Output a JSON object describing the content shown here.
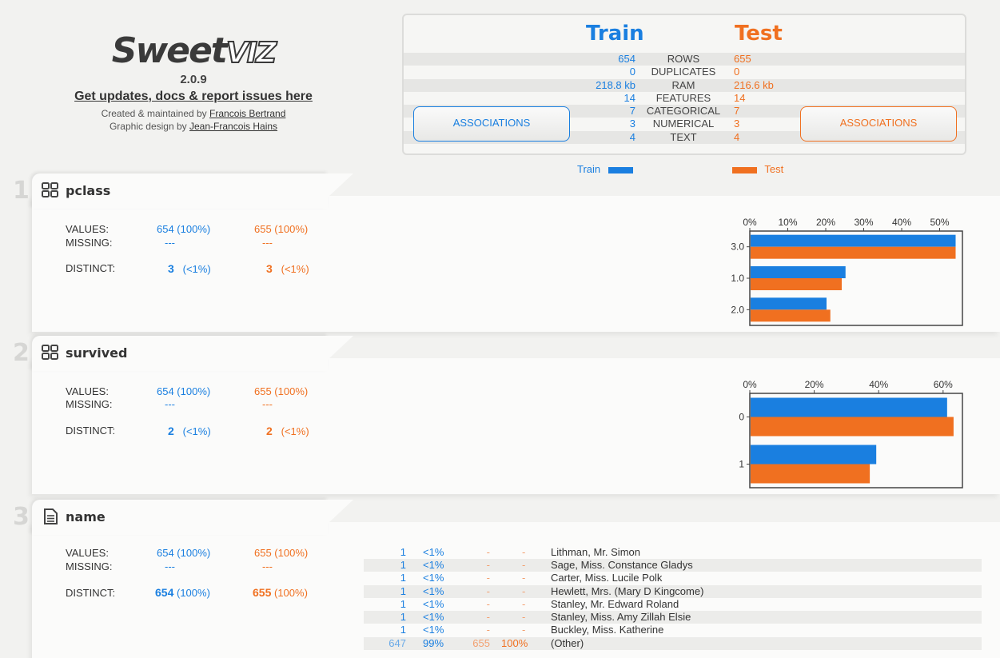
{
  "header": {
    "logo_main": "Sweet",
    "logo_accent": "VIZ",
    "version": "2.0.9",
    "updates_link": "Get updates, docs & report issues here",
    "created_prefix": "Created & maintained by ",
    "author": "Francois Bertrand",
    "design_prefix": "Graphic design by ",
    "designer": "Jean-Francois Hains"
  },
  "summary": {
    "train_title": "Train",
    "test_title": "Test",
    "rows": [
      {
        "label": "ROWS",
        "train": "654",
        "test": "655"
      },
      {
        "label": "DUPLICATES",
        "train": "0",
        "test": "0"
      },
      {
        "label": "RAM",
        "train": "218.8 kb",
        "test": "216.6 kb"
      },
      {
        "label": "FEATURES",
        "train": "14",
        "test": "14"
      },
      {
        "label": "CATEGORICAL",
        "train": "7",
        "test": "7"
      },
      {
        "label": "NUMERICAL",
        "train": "3",
        "test": "3"
      },
      {
        "label": "TEXT",
        "train": "4",
        "test": "4"
      }
    ],
    "assoc_train": "ASSOCIATIONS",
    "assoc_test": "ASSOCIATIONS",
    "legend_train": "Train",
    "legend_test": "Test",
    "colors": {
      "train": "#1a7fe0",
      "test": "#f07020"
    }
  },
  "features": [
    {
      "num": "1",
      "name": "pclass",
      "icon": "categorical-grid-icon",
      "values_label": "VALUES:",
      "missing_label": "MISSING:",
      "distinct_label": "DISTINCT:",
      "train_values": "654 (100%)",
      "test_values": "655 (100%)",
      "train_missing": "---",
      "test_missing": "---",
      "train_distinct": "3",
      "train_distinct_pct": "(<1%)",
      "test_distinct": "3",
      "test_distinct_pct": "(<1%)"
    },
    {
      "num": "2",
      "name": "survived",
      "icon": "categorical-grid-icon",
      "values_label": "VALUES:",
      "missing_label": "MISSING:",
      "distinct_label": "DISTINCT:",
      "train_values": "654 (100%)",
      "test_values": "655 (100%)",
      "train_missing": "---",
      "test_missing": "---",
      "train_distinct": "2",
      "train_distinct_pct": "(<1%)",
      "test_distinct": "2",
      "test_distinct_pct": "(<1%)"
    },
    {
      "num": "3",
      "name": "name",
      "icon": "text-document-icon",
      "values_label": "VALUES:",
      "missing_label": "MISSING:",
      "distinct_label": "DISTINCT:",
      "train_values": "654 (100%)",
      "test_values": "655 (100%)",
      "train_missing": "---",
      "test_missing": "---",
      "train_distinct": "654",
      "train_distinct_pct": "(100%)",
      "test_distinct": "655",
      "test_distinct_pct": "(100%)",
      "top_values": [
        {
          "tc": "1",
          "tp": "<1%",
          "sc": "-",
          "sp": "-",
          "label": "Lithman, Mr. Simon"
        },
        {
          "tc": "1",
          "tp": "<1%",
          "sc": "-",
          "sp": "-",
          "label": "Sage, Miss. Constance Gladys"
        },
        {
          "tc": "1",
          "tp": "<1%",
          "sc": "-",
          "sp": "-",
          "label": "Carter, Miss. Lucile Polk"
        },
        {
          "tc": "1",
          "tp": "<1%",
          "sc": "-",
          "sp": "-",
          "label": "Hewlett, Mrs. (Mary D Kingcome)"
        },
        {
          "tc": "1",
          "tp": "<1%",
          "sc": "-",
          "sp": "-",
          "label": "Stanley, Mr. Edward Roland"
        },
        {
          "tc": "1",
          "tp": "<1%",
          "sc": "-",
          "sp": "-",
          "label": "Stanley, Miss. Amy Zillah Elsie"
        },
        {
          "tc": "1",
          "tp": "<1%",
          "sc": "-",
          "sp": "-",
          "label": "Buckley, Miss. Katherine"
        },
        {
          "tc": "647",
          "tp": "99%",
          "sc": "655",
          "sp": "100%",
          "label": "(Other)"
        }
      ]
    }
  ],
  "chart_data": [
    {
      "type": "bar",
      "orientation": "horizontal",
      "categories": [
        "3.0",
        "1.0",
        "2.0"
      ],
      "xticks": [
        "0%",
        "10%",
        "20%",
        "30%",
        "40%",
        "50%"
      ],
      "xlim": [
        0,
        56
      ],
      "series": [
        {
          "name": "Train",
          "values": [
            54,
            25,
            20
          ]
        },
        {
          "name": "Test",
          "values": [
            54,
            24,
            21
          ]
        }
      ]
    },
    {
      "type": "bar",
      "orientation": "horizontal",
      "categories": [
        "0",
        "1"
      ],
      "xticks": [
        "0%",
        "20%",
        "40%",
        "60%"
      ],
      "xlim": [
        0,
        66
      ],
      "series": [
        {
          "name": "Train",
          "values": [
            61,
            39
          ]
        },
        {
          "name": "Test",
          "values": [
            63,
            37
          ]
        }
      ]
    }
  ]
}
